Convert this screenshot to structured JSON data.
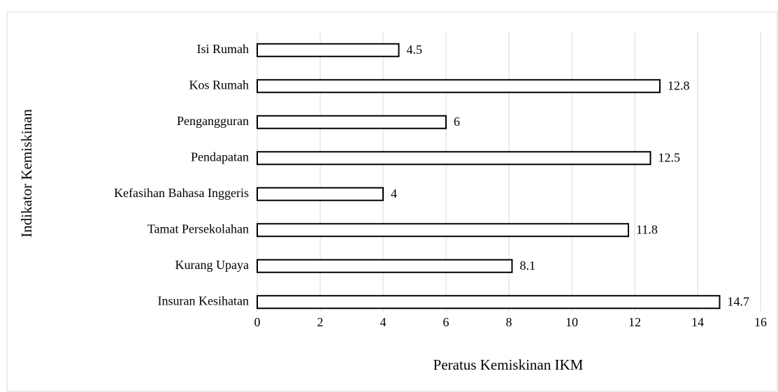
{
  "chart_data": {
    "type": "bar",
    "orientation": "horizontal",
    "categories": [
      "Isi Rumah",
      "Kos Rumah",
      "Pengangguran",
      "Pendapatan",
      "Kefasihan Bahasa Inggeris",
      "Tamat Persekolahan",
      "Kurang Upaya",
      "Insuran Kesihatan"
    ],
    "values": [
      4.5,
      12.8,
      6,
      12.5,
      4,
      11.8,
      8.1,
      14.7
    ],
    "color": "#ffffff",
    "xlabel": "Peratus Kemiskinan IKM",
    "ylabel": "Indikator Kemiskinan",
    "xlim": [
      0,
      16
    ],
    "xticks": [
      0,
      2,
      4,
      6,
      8,
      10,
      12,
      14,
      16
    ],
    "grid": true
  }
}
